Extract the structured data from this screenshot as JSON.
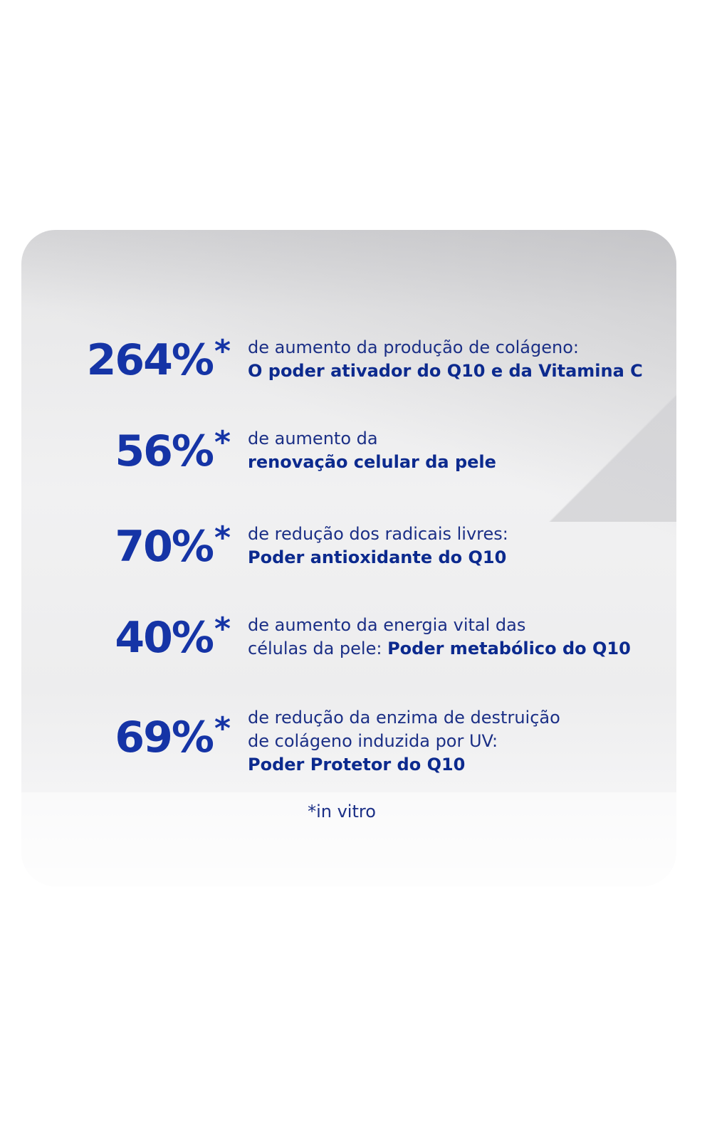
{
  "colors": {
    "number": "#1534a6",
    "text": "#1b2f86",
    "bold": "#0c2a8e"
  },
  "stats": [
    {
      "value": "264%",
      "mark": "*",
      "lines": [
        {
          "regular": "de aumento da produção de colágeno:",
          "bold": ""
        },
        {
          "regular": "",
          "bold": "O poder ativador do Q10 e da Vitamina C"
        }
      ]
    },
    {
      "value": "56%",
      "mark": "*",
      "lines": [
        {
          "regular": "de aumento da",
          "bold": ""
        },
        {
          "regular": "",
          "bold": "renovação celular da pele"
        }
      ]
    },
    {
      "value": "70%",
      "mark": "*",
      "lines": [
        {
          "regular": "de redução dos radicais livres:",
          "bold": ""
        },
        {
          "regular": "",
          "bold": "Poder antioxidante do Q10"
        }
      ]
    },
    {
      "value": "40%",
      "mark": "*",
      "lines": [
        {
          "regular": "de aumento da energia vital das",
          "bold": ""
        },
        {
          "regular": "células da pele: ",
          "bold": "Poder metabólico do Q10"
        }
      ]
    },
    {
      "value": "69%",
      "mark": "*",
      "lines": [
        {
          "regular": "de redução da enzima de destruição",
          "bold": ""
        },
        {
          "regular": "de colágeno induzida por UV:",
          "bold": ""
        },
        {
          "regular": "",
          "bold": "Poder Protetor do Q10"
        }
      ]
    }
  ],
  "footnote": "*in vitro"
}
